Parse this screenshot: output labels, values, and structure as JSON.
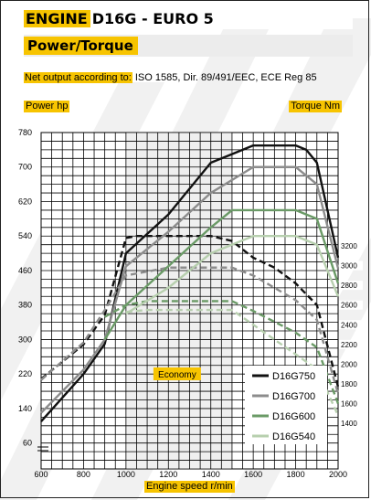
{
  "header": {
    "engine_label": "ENGINE",
    "engine_model": "D16G - EURO 5",
    "subtitle": "Power/Torque"
  },
  "net_output": {
    "label": "Net output according to:",
    "standards": "ISO 1585, Dir. 89/491/EEC, ECE Reg 85"
  },
  "colors": {
    "accent": "#f7c400",
    "D16G750": "#111111",
    "D16G700": "#8c8c8c",
    "D16G600": "#6a9a66",
    "D16G540": "#b7cfae",
    "economy_band": "#efefef"
  },
  "chart_data": {
    "type": "line",
    "xlabel": "Engine speed r/min",
    "ylabel_left": "Power hp",
    "ylabel_right": "Torque Nm",
    "xlim": [
      600,
      2000
    ],
    "ylim_left": [
      0,
      780
    ],
    "x_ticks": [
      600,
      800,
      1000,
      1200,
      1400,
      1600,
      1800,
      2000
    ],
    "y_left_ticks": [
      60,
      140,
      220,
      300,
      380,
      460,
      540,
      620,
      700,
      780
    ],
    "torque_scale": {
      "nm_min": 1200,
      "nm_max": 3300,
      "hp_at_min": 60,
      "hp_at_max": 540
    },
    "y_right_ticks": [
      1400,
      1600,
      1800,
      2000,
      2200,
      2400,
      2600,
      2800,
      3000,
      3200
    ],
    "economy_range": [
      1000,
      1500
    ],
    "economy_label": "Economy",
    "series": [
      {
        "name": "D16G750",
        "power_hp": [
          [
            600,
            110
          ],
          [
            800,
            220
          ],
          [
            900,
            290
          ],
          [
            1000,
            500
          ],
          [
            1200,
            590
          ],
          [
            1400,
            710
          ],
          [
            1500,
            730
          ],
          [
            1600,
            750
          ],
          [
            1800,
            750
          ],
          [
            1850,
            740
          ],
          [
            1900,
            710
          ],
          [
            2000,
            490
          ]
        ],
        "torque_nm": [
          [
            600,
            1850
          ],
          [
            800,
            2200
          ],
          [
            900,
            2500
          ],
          [
            1000,
            3280
          ],
          [
            1050,
            3300
          ],
          [
            1400,
            3300
          ],
          [
            1500,
            3250
          ],
          [
            1600,
            3080
          ],
          [
            1700,
            2980
          ],
          [
            1800,
            2820
          ],
          [
            1900,
            2600
          ],
          [
            2000,
            1770
          ]
        ]
      },
      {
        "name": "D16G700",
        "power_hp": [
          [
            600,
            130
          ],
          [
            800,
            230
          ],
          [
            900,
            300
          ],
          [
            1000,
            470
          ],
          [
            1200,
            550
          ],
          [
            1400,
            640
          ],
          [
            1600,
            700
          ],
          [
            1800,
            700
          ],
          [
            1900,
            660
          ],
          [
            2000,
            465
          ]
        ],
        "torque_nm": [
          [
            600,
            1840
          ],
          [
            800,
            2220
          ],
          [
            900,
            2550
          ],
          [
            1000,
            2900
          ],
          [
            1200,
            2980
          ],
          [
            1500,
            2980
          ],
          [
            1600,
            2900
          ],
          [
            1800,
            2650
          ],
          [
            1900,
            2450
          ],
          [
            2000,
            1700
          ]
        ]
      },
      {
        "name": "D16G600",
        "power_hp": [
          [
            900,
            300
          ],
          [
            1000,
            380
          ],
          [
            1200,
            470
          ],
          [
            1400,
            560
          ],
          [
            1500,
            600
          ],
          [
            1800,
            600
          ],
          [
            1900,
            580
          ],
          [
            2000,
            430
          ]
        ],
        "torque_nm": [
          [
            900,
            2480
          ],
          [
            1000,
            2600
          ],
          [
            1100,
            2640
          ],
          [
            1500,
            2640
          ],
          [
            1600,
            2540
          ],
          [
            1800,
            2320
          ],
          [
            1900,
            2170
          ],
          [
            2000,
            1600
          ]
        ]
      },
      {
        "name": "D16G540",
        "power_hp": [
          [
            1000,
            360
          ],
          [
            1200,
            420
          ],
          [
            1400,
            500
          ],
          [
            1600,
            540
          ],
          [
            1800,
            540
          ],
          [
            1900,
            520
          ],
          [
            2000,
            400
          ]
        ],
        "torque_nm": [
          [
            1000,
            2530
          ],
          [
            1100,
            2550
          ],
          [
            1500,
            2550
          ],
          [
            1600,
            2400
          ],
          [
            1800,
            2100
          ],
          [
            1900,
            1950
          ],
          [
            2000,
            1480
          ]
        ]
      }
    ]
  }
}
